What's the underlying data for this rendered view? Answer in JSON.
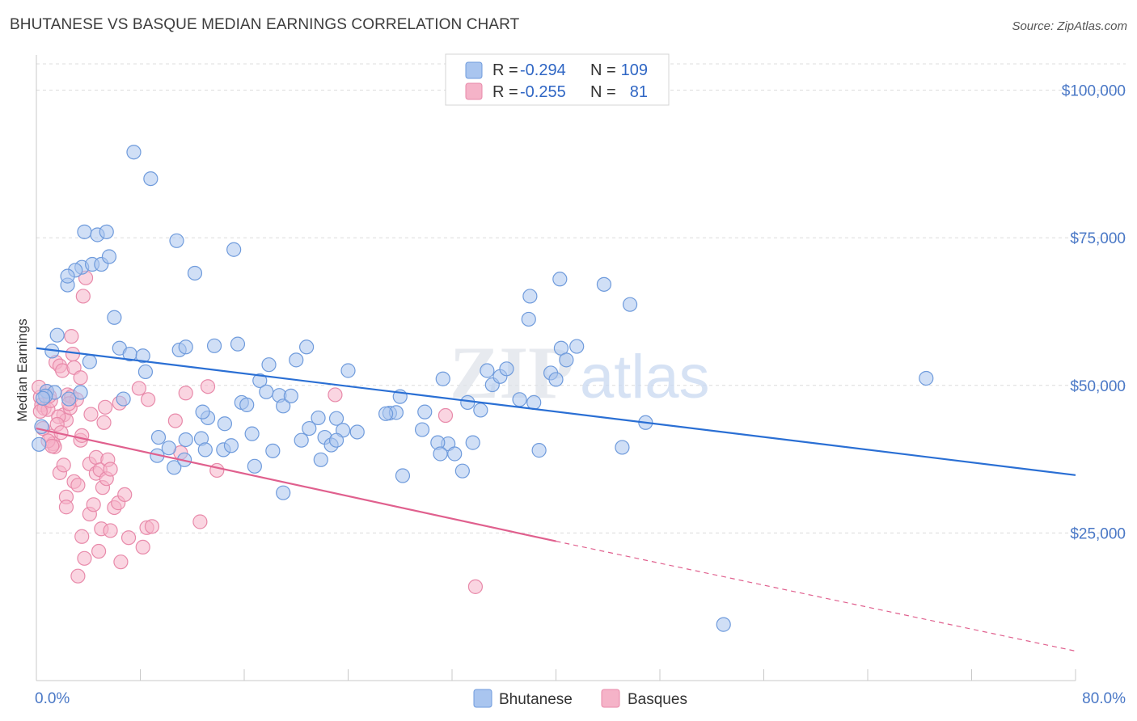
{
  "title": "BHUTANESE VS BASQUE MEDIAN EARNINGS CORRELATION CHART",
  "source": "Source: ZipAtlas.com",
  "watermark": "ZIPatlas",
  "colors": {
    "blue_fill": "#a9c5ef",
    "blue_stroke": "#6f9bdc",
    "blue_line": "#2a6fd4",
    "pink_fill": "#f5b3c8",
    "pink_stroke": "#e88aaa",
    "pink_line": "#e0608e",
    "grid": "#dcdcdc",
    "tick_text": "#4a78c6"
  },
  "legend_top": {
    "rows": [
      {
        "series": "Bhutanese",
        "r_label": "R =",
        "r_value": "-0.294",
        "n_label": "N =",
        "n_value": "109"
      },
      {
        "series": "Basques",
        "r_label": "R =",
        "r_value": "-0.255",
        "n_label": "N =",
        "n_value": "81"
      }
    ]
  },
  "chart_data": {
    "type": "scatter",
    "title": "BHUTANESE VS BASQUE MEDIAN EARNINGS CORRELATION CHART",
    "xlabel": "",
    "ylabel": "Median Earnings",
    "xlim": [
      0,
      80
    ],
    "ylim": [
      0,
      105000
    ],
    "x_tick_labels": [
      "0.0%",
      "80.0%"
    ],
    "y_ticks": [
      25000,
      50000,
      75000,
      100000
    ],
    "y_tick_labels": [
      "$25,000",
      "$50,000",
      "$75,000",
      "$100,000"
    ],
    "grid": true,
    "legend_position": "top-center and bottom",
    "series": [
      {
        "name": "Bhutanese",
        "trend": {
          "x": [
            0,
            80
          ],
          "y": [
            56300,
            34800
          ],
          "dashed_from": null
        },
        "points": [
          [
            7.5,
            89500
          ],
          [
            8.8,
            85000
          ],
          [
            3.7,
            76000
          ],
          [
            4.7,
            75500
          ],
          [
            5.4,
            76000
          ],
          [
            10.8,
            74500
          ],
          [
            15.2,
            73000
          ],
          [
            3.5,
            70000
          ],
          [
            4.3,
            70500
          ],
          [
            5.0,
            70500
          ],
          [
            5.6,
            71800
          ],
          [
            3.0,
            69500
          ],
          [
            12.2,
            69000
          ],
          [
            2.4,
            67000
          ],
          [
            2.4,
            68500
          ],
          [
            6.0,
            61500
          ],
          [
            1.6,
            58500
          ],
          [
            1.2,
            55800
          ],
          [
            4.1,
            54000
          ],
          [
            6.4,
            56300
          ],
          [
            7.2,
            55300
          ],
          [
            8.2,
            55000
          ],
          [
            11.0,
            56000
          ],
          [
            11.5,
            56500
          ],
          [
            13.7,
            56700
          ],
          [
            15.5,
            57000
          ],
          [
            17.9,
            53500
          ],
          [
            20.0,
            54300
          ],
          [
            20.8,
            56500
          ],
          [
            24.0,
            52500
          ],
          [
            8.4,
            52300
          ],
          [
            0.8,
            49000
          ],
          [
            1.4,
            48800
          ],
          [
            0.7,
            48200
          ],
          [
            0.5,
            47800
          ],
          [
            6.7,
            47700
          ],
          [
            13.2,
            44500
          ],
          [
            12.8,
            45500
          ],
          [
            14.5,
            43500
          ],
          [
            15.8,
            47100
          ],
          [
            16.2,
            46700
          ],
          [
            17.2,
            50800
          ],
          [
            17.7,
            48900
          ],
          [
            18.7,
            48300
          ],
          [
            19.0,
            46500
          ],
          [
            19.6,
            48200
          ],
          [
            21.7,
            44500
          ],
          [
            22.2,
            41200
          ],
          [
            23.1,
            44400
          ],
          [
            23.6,
            42400
          ],
          [
            24.7,
            42100
          ],
          [
            27.2,
            45300
          ],
          [
            27.7,
            45400
          ],
          [
            28.0,
            48100
          ],
          [
            29.7,
            42500
          ],
          [
            29.9,
            45500
          ],
          [
            31.3,
            51100
          ],
          [
            31.7,
            40100
          ],
          [
            32.2,
            38400
          ],
          [
            32.8,
            35500
          ],
          [
            33.2,
            47100
          ],
          [
            33.6,
            40300
          ],
          [
            34.2,
            45800
          ],
          [
            34.7,
            52500
          ],
          [
            35.1,
            50100
          ],
          [
            35.7,
            51500
          ],
          [
            36.2,
            52800
          ],
          [
            37.2,
            47600
          ],
          [
            38.0,
            65100
          ],
          [
            37.9,
            61200
          ],
          [
            38.3,
            47100
          ],
          [
            38.7,
            39000
          ],
          [
            39.6,
            52100
          ],
          [
            40.0,
            51000
          ],
          [
            40.3,
            68000
          ],
          [
            40.4,
            56300
          ],
          [
            40.8,
            54300
          ],
          [
            41.6,
            56600
          ],
          [
            43.7,
            67100
          ],
          [
            45.1,
            39500
          ],
          [
            45.7,
            63700
          ],
          [
            46.9,
            43700
          ],
          [
            52.9,
            9500
          ],
          [
            68.5,
            51200
          ],
          [
            3.4,
            48800
          ],
          [
            9.4,
            41200
          ],
          [
            10.2,
            39400
          ],
          [
            10.6,
            36100
          ],
          [
            11.5,
            40800
          ],
          [
            12.7,
            41000
          ],
          [
            13.0,
            39100
          ],
          [
            14.4,
            39100
          ],
          [
            15.0,
            39800
          ],
          [
            16.6,
            41800
          ],
          [
            16.8,
            36300
          ],
          [
            18.2,
            38900
          ],
          [
            19.0,
            31800
          ],
          [
            20.4,
            40700
          ],
          [
            21.0,
            42700
          ],
          [
            21.9,
            37400
          ],
          [
            22.7,
            39900
          ],
          [
            23.1,
            40700
          ],
          [
            26.9,
            45200
          ],
          [
            28.2,
            34700
          ],
          [
            30.9,
            40300
          ],
          [
            31.1,
            38400
          ],
          [
            9.3,
            38100
          ],
          [
            11.4,
            37400
          ],
          [
            0.4,
            43000
          ],
          [
            0.2,
            40000
          ],
          [
            2.5,
            47700
          ]
        ]
      },
      {
        "name": "Basques",
        "trend": {
          "x": [
            0,
            40,
            80
          ],
          "y": [
            42700,
            23600,
            5000
          ],
          "dashed_from": 40
        },
        "points": [
          [
            0.3,
            48000
          ],
          [
            0.4,
            46700
          ],
          [
            0.6,
            46100
          ],
          [
            0.9,
            45900
          ],
          [
            1.1,
            47400
          ],
          [
            1.0,
            48200
          ],
          [
            1.5,
            53900
          ],
          [
            1.8,
            53300
          ],
          [
            2.0,
            52500
          ],
          [
            2.1,
            45000
          ],
          [
            2.3,
            44100
          ],
          [
            2.4,
            48400
          ],
          [
            2.6,
            46200
          ],
          [
            2.7,
            48100
          ],
          [
            2.8,
            55300
          ],
          [
            2.9,
            53000
          ],
          [
            3.1,
            47600
          ],
          [
            3.4,
            51300
          ],
          [
            2.7,
            58300
          ],
          [
            3.6,
            65100
          ],
          [
            3.8,
            68200
          ],
          [
            1.1,
            41400
          ],
          [
            1.3,
            40100
          ],
          [
            1.4,
            39600
          ],
          [
            1.8,
            35200
          ],
          [
            2.1,
            36500
          ],
          [
            2.3,
            31100
          ],
          [
            2.3,
            29400
          ],
          [
            2.9,
            33700
          ],
          [
            3.2,
            33100
          ],
          [
            3.4,
            40700
          ],
          [
            3.5,
            41500
          ],
          [
            4.1,
            36700
          ],
          [
            4.2,
            45100
          ],
          [
            4.6,
            37800
          ],
          [
            4.6,
            35100
          ],
          [
            4.9,
            35700
          ],
          [
            5.2,
            43700
          ],
          [
            5.1,
            32700
          ],
          [
            5.4,
            34200
          ],
          [
            5.5,
            37400
          ],
          [
            5.7,
            35800
          ],
          [
            5.3,
            46300
          ],
          [
            6.0,
            29300
          ],
          [
            6.3,
            30100
          ],
          [
            6.8,
            31500
          ],
          [
            6.4,
            47000
          ],
          [
            4.1,
            28200
          ],
          [
            4.4,
            29800
          ],
          [
            3.5,
            24400
          ],
          [
            3.7,
            20700
          ],
          [
            4.8,
            21900
          ],
          [
            5.0,
            25700
          ],
          [
            5.7,
            25400
          ],
          [
            6.5,
            20100
          ],
          [
            7.1,
            24200
          ],
          [
            8.2,
            22600
          ],
          [
            8.5,
            25900
          ],
          [
            8.9,
            26100
          ],
          [
            11.1,
            38600
          ],
          [
            10.7,
            44000
          ],
          [
            11.5,
            48700
          ],
          [
            13.2,
            49800
          ],
          [
            13.9,
            35600
          ],
          [
            12.6,
            26900
          ],
          [
            23.0,
            48400
          ],
          [
            31.5,
            44900
          ],
          [
            33.8,
            15900
          ],
          [
            7.9,
            49500
          ],
          [
            8.6,
            47600
          ],
          [
            0.2,
            49700
          ],
          [
            0.3,
            45600
          ],
          [
            0.5,
            42700
          ],
          [
            0.9,
            40600
          ],
          [
            1.2,
            39700
          ],
          [
            1.7,
            44700
          ],
          [
            0.8,
            49000
          ],
          [
            3.2,
            17700
          ],
          [
            1.6,
            43400
          ],
          [
            2.5,
            46900
          ],
          [
            1.9,
            42000
          ]
        ]
      }
    ]
  },
  "bottom_legend": [
    {
      "series": "Bhutanese",
      "label": "Bhutanese"
    },
    {
      "series": "Basques",
      "label": "Basques"
    }
  ]
}
